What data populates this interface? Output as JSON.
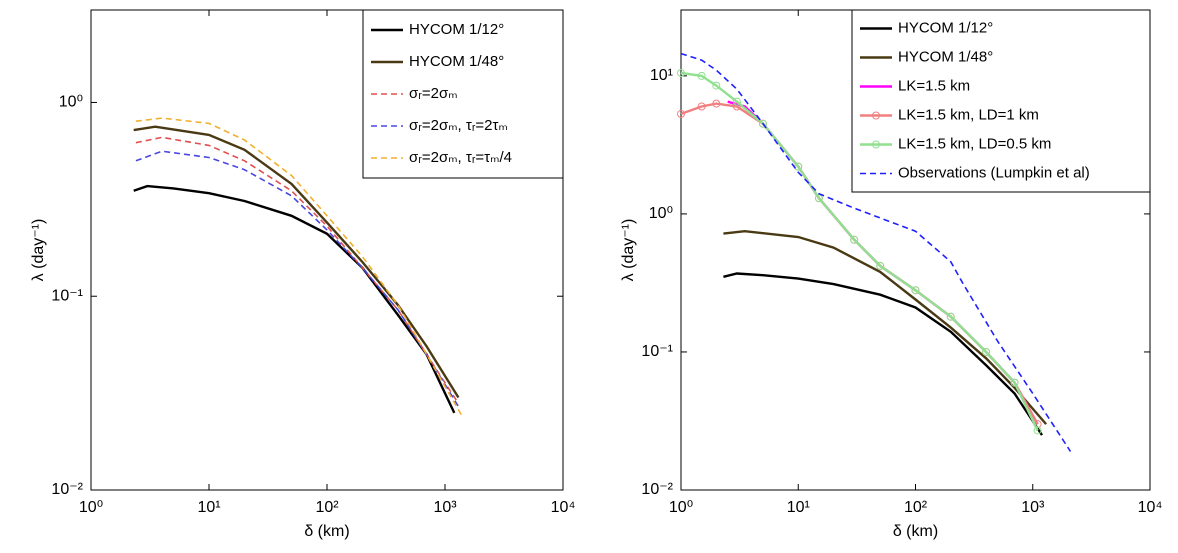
{
  "chart_data": [
    {
      "type": "line",
      "xlabel": "δ (km)",
      "ylabel": "λ (day⁻¹)",
      "log_x": true,
      "log_y": true,
      "legend": "upper right",
      "xlim": [
        1,
        10000
      ],
      "ylim": [
        0.01,
        3
      ],
      "xticks": [
        {
          "value": 1,
          "label": "10⁰"
        },
        {
          "value": 10,
          "label": "10¹"
        },
        {
          "value": 100,
          "label": "10²"
        },
        {
          "value": 1000,
          "label": "10³"
        },
        {
          "value": 10000,
          "label": "10⁴"
        }
      ],
      "yticks": [
        {
          "value": 0.01,
          "label": "10⁻²"
        },
        {
          "value": 0.1,
          "label": "10⁻¹"
        },
        {
          "value": 1,
          "label": "10⁰"
        }
      ],
      "series": [
        {
          "name": "HYCOM 1/12°",
          "color": "#000000",
          "dash": false,
          "x": [
            2.3,
            3,
            5,
            10,
            20,
            50,
            100,
            200,
            400,
            700,
            1200
          ],
          "values": [
            0.35,
            0.37,
            0.36,
            0.34,
            0.31,
            0.26,
            0.21,
            0.14,
            0.08,
            0.05,
            0.025
          ]
        },
        {
          "name": "HYCOM 1/48°",
          "color": "#4a3a14",
          "dash": false,
          "x": [
            2.3,
            3.5,
            10,
            20,
            50,
            100,
            200,
            400,
            700,
            1300
          ],
          "values": [
            0.72,
            0.75,
            0.68,
            0.57,
            0.38,
            0.24,
            0.15,
            0.09,
            0.055,
            0.03
          ]
        },
        {
          "name": "σᵣ=2σₘ",
          "color": "#e05050",
          "dash": true,
          "x": [
            2.4,
            4,
            10,
            20,
            50,
            100,
            200,
            400,
            700,
            1300
          ],
          "values": [
            0.62,
            0.66,
            0.6,
            0.5,
            0.35,
            0.23,
            0.14,
            0.085,
            0.05,
            0.028
          ]
        },
        {
          "name": "σᵣ=2σₘ, τᵣ=2τₘ",
          "color": "#4848e0",
          "dash": true,
          "x": [
            2.4,
            4,
            10,
            20,
            50,
            100,
            200,
            400,
            700,
            1300
          ],
          "values": [
            0.5,
            0.56,
            0.52,
            0.45,
            0.33,
            0.22,
            0.14,
            0.085,
            0.05,
            0.027
          ]
        },
        {
          "name": "σᵣ=2σₘ, τᵣ=τₘ/4",
          "color": "#f0b030",
          "dash": true,
          "x": [
            2.4,
            4,
            10,
            20,
            50,
            100,
            200,
            400,
            700,
            1400
          ],
          "values": [
            0.8,
            0.83,
            0.78,
            0.64,
            0.42,
            0.26,
            0.16,
            0.09,
            0.05,
            0.024
          ]
        }
      ]
    },
    {
      "type": "line",
      "xlabel": "δ (km)",
      "ylabel": "λ (day⁻¹)",
      "log_x": true,
      "log_y": true,
      "legend": "upper right",
      "xlim": [
        1,
        10000
      ],
      "ylim": [
        0.01,
        30
      ],
      "xticks": [
        {
          "value": 1,
          "label": "10⁰"
        },
        {
          "value": 10,
          "label": "10¹"
        },
        {
          "value": 100,
          "label": "10²"
        },
        {
          "value": 1000,
          "label": "10³"
        },
        {
          "value": 10000,
          "label": "10⁴"
        }
      ],
      "yticks": [
        {
          "value": 0.01,
          "label": "10⁻²"
        },
        {
          "value": 0.1,
          "label": "10⁻¹"
        },
        {
          "value": 1,
          "label": "10⁰"
        },
        {
          "value": 10,
          "label": "10¹"
        }
      ],
      "series": [
        {
          "name": "HYCOM 1/12°",
          "color": "#000000",
          "dash": false,
          "x": [
            2.3,
            3,
            5,
            10,
            20,
            50,
            100,
            200,
            400,
            700,
            1200
          ],
          "values": [
            0.35,
            0.37,
            0.36,
            0.34,
            0.31,
            0.26,
            0.21,
            0.14,
            0.08,
            0.05,
            0.025
          ]
        },
        {
          "name": "HYCOM 1/48°",
          "color": "#4a3a14",
          "dash": false,
          "x": [
            2.3,
            3.5,
            10,
            20,
            50,
            100,
            200,
            400,
            700,
            1300
          ],
          "values": [
            0.72,
            0.75,
            0.68,
            0.57,
            0.38,
            0.24,
            0.15,
            0.09,
            0.055,
            0.03
          ]
        },
        {
          "name": "LK=1.5 km",
          "color": "#ff00ff",
          "dash": false,
          "x": [
            2.5,
            3.5,
            5,
            10,
            15,
            30,
            50,
            100,
            200,
            400,
            700,
            1100
          ],
          "values": [
            6.5,
            6,
            4.5,
            2.2,
            1.3,
            0.65,
            0.42,
            0.28,
            0.18,
            0.1,
            0.06,
            0.03
          ]
        },
        {
          "name": "LK=1.5 km, LD=1 km",
          "color": "#f08080",
          "dash": false,
          "marker": "o",
          "x": [
            1,
            1.5,
            2,
            3,
            5,
            10,
            15,
            30,
            50,
            100,
            200,
            400,
            700,
            1100
          ],
          "values": [
            5.3,
            6,
            6.3,
            6,
            4.5,
            2.2,
            1.3,
            0.65,
            0.42,
            0.28,
            0.18,
            0.1,
            0.06,
            0.03
          ]
        },
        {
          "name": "LK=1.5 km, LD=0.5 km",
          "color": "#90e090",
          "dash": false,
          "marker": "o",
          "x": [
            1,
            1.5,
            2,
            3,
            5,
            10,
            15,
            30,
            50,
            100,
            200,
            400,
            700,
            1100
          ],
          "values": [
            10.5,
            10,
            8.5,
            6.5,
            4.5,
            2.2,
            1.3,
            0.65,
            0.42,
            0.28,
            0.18,
            0.1,
            0.06,
            0.027
          ]
        },
        {
          "name": "Observations (Lumpkin et al)",
          "color": "#2020ff",
          "dash": true,
          "x": [
            1,
            1.5,
            2,
            3,
            5,
            10,
            15,
            30,
            100,
            200,
            250,
            500,
            1000,
            2100
          ],
          "values": [
            14.5,
            13,
            11,
            8,
            4.5,
            2,
            1.4,
            1.1,
            0.75,
            0.45,
            0.32,
            0.12,
            0.05,
            0.019
          ]
        }
      ]
    }
  ]
}
